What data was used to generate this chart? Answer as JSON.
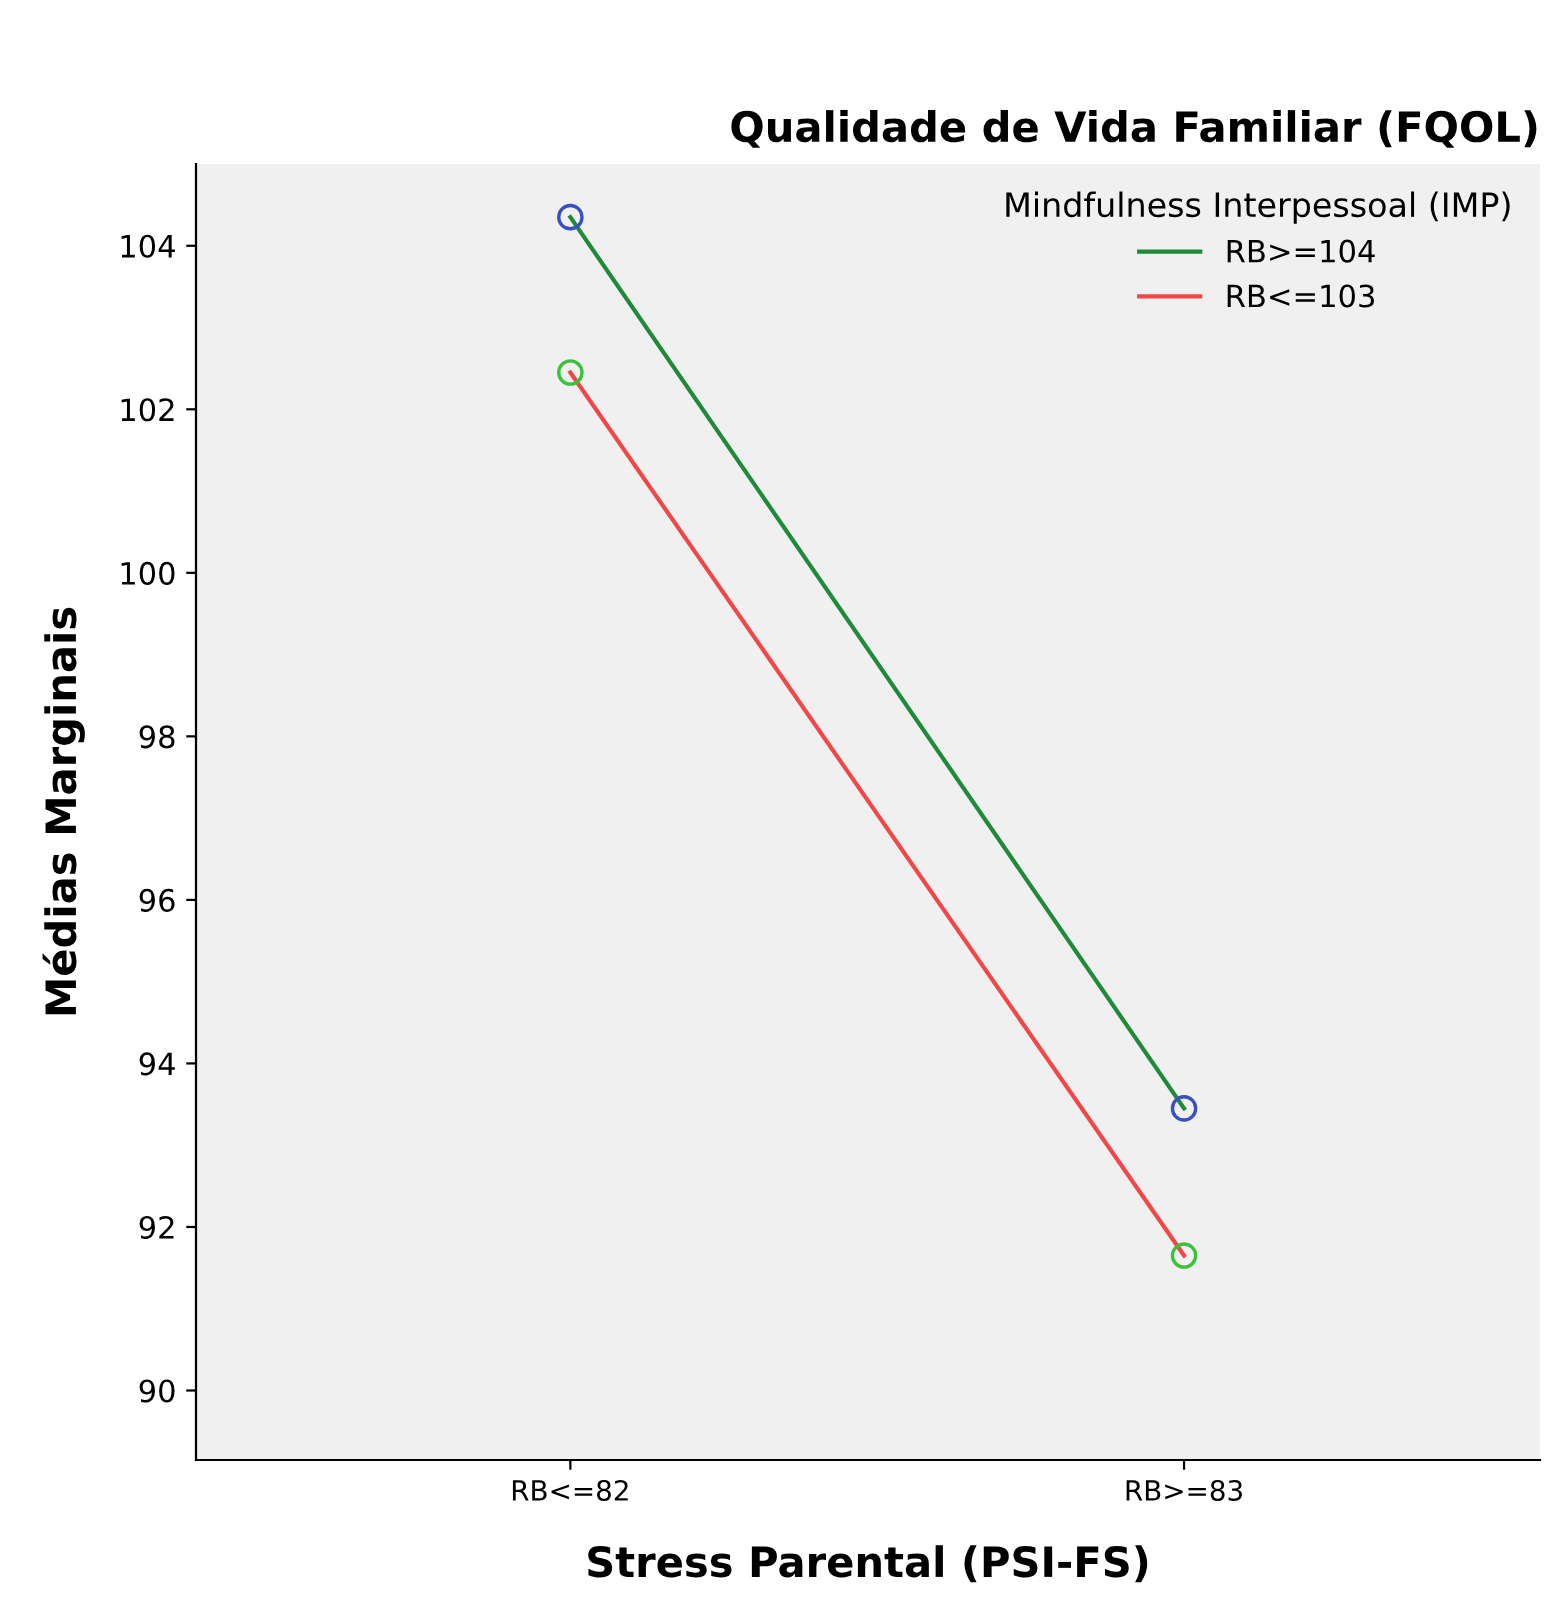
{
  "chart_data": {
    "type": "line",
    "title": "Qualidade de Vida Familiar (FQOL)",
    "xlabel": "Stress Parental (PSI-FS)",
    "ylabel": "Médias Marginais",
    "legend_title": "Mindfulness Interpessoal (IMP)",
    "categories": [
      "RB<=82",
      "RB>=83"
    ],
    "series": [
      {
        "name": "RB>=104",
        "color": "#1f8a3a",
        "values": [
          104.35,
          93.45
        ]
      },
      {
        "name": "RB<=103",
        "color": "#f04848",
        "values": [
          102.45,
          91.65
        ]
      },
      {
        "type": "scatter",
        "color": "#3a4fc0",
        "marker": "circle",
        "x": [
          "RB<=82",
          "RB>=83"
        ],
        "values": [
          104.35,
          93.45
        ]
      },
      {
        "type": "scatter",
        "color": "#3ac23a",
        "marker": "circle",
        "x": [
          "RB<=82",
          "RB>=83"
        ],
        "values": [
          102.45,
          91.65
        ]
      }
    ],
    "ylim": [
      89.15,
      105
    ],
    "yticks": [
      90,
      92,
      94,
      96,
      98,
      100,
      102,
      104
    ],
    "grid": false,
    "legend": "top right",
    "marker": "none"
  }
}
